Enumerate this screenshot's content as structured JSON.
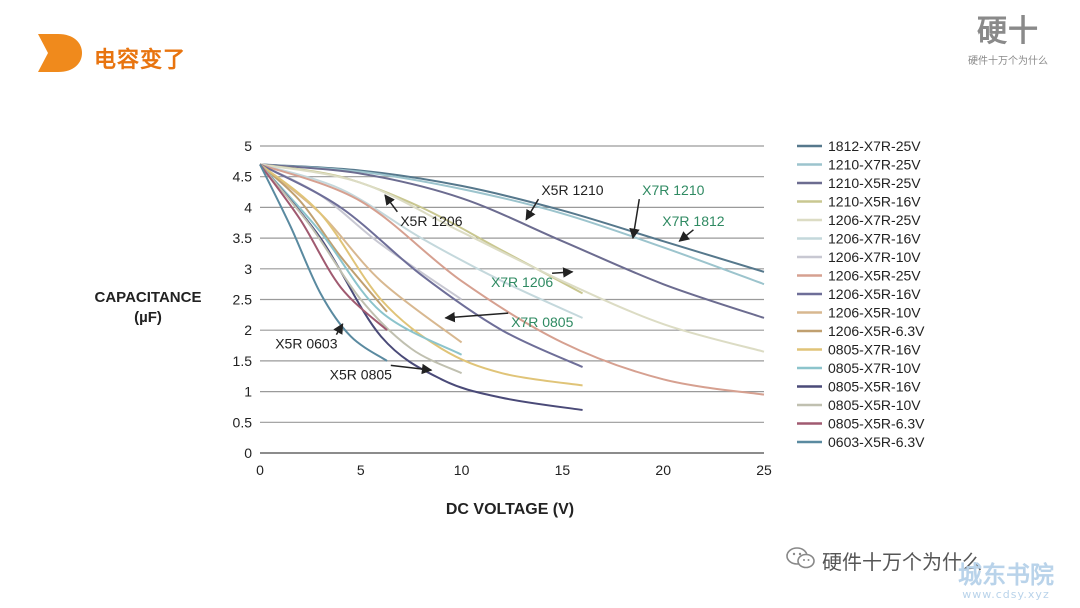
{
  "slide": {
    "title": "电容变了"
  },
  "brand": {
    "name": "硬十",
    "slogan": "硬件十万个为什么"
  },
  "footer": {
    "wechat_account": "硬件十万个为什么",
    "watermark_name": "城东书院",
    "watermark_url": "www.cdsy.xyz"
  },
  "colors": {
    "accent": "#e8740f"
  },
  "chart_data": {
    "type": "line",
    "xlabel": "DC VOLTAGE (V)",
    "ylabel": "CAPACITANCE\n(µF)",
    "xlim": [
      0,
      25
    ],
    "ylim": [
      0,
      5
    ],
    "x_ticks": [
      "0",
      "5",
      "10",
      "15",
      "20",
      "25"
    ],
    "y_ticks": [
      "0",
      "0.5",
      "1",
      "1.5",
      "2",
      "2.5",
      "3",
      "3.5",
      "4",
      "4.5",
      "5"
    ],
    "grid": "horizontal",
    "legend_position": "right",
    "series": [
      {
        "name": "1812-X7R-25V",
        "color": "#56788c",
        "points": [
          [
            0,
            4.7
          ],
          [
            5,
            4.6
          ],
          [
            10,
            4.35
          ],
          [
            15,
            3.95
          ],
          [
            20,
            3.45
          ],
          [
            25,
            2.95
          ]
        ]
      },
      {
        "name": "1210-X7R-25V",
        "color": "#9cc4cd",
        "points": [
          [
            0,
            4.7
          ],
          [
            5,
            4.58
          ],
          [
            10,
            4.3
          ],
          [
            15,
            3.9
          ],
          [
            20,
            3.35
          ],
          [
            25,
            2.75
          ]
        ]
      },
      {
        "name": "1210-X5R-25V",
        "color": "#6c6c90",
        "points": [
          [
            0,
            4.7
          ],
          [
            5,
            4.55
          ],
          [
            10,
            4.15
          ],
          [
            15,
            3.45
          ],
          [
            20,
            2.75
          ],
          [
            25,
            2.2
          ]
        ]
      },
      {
        "name": "1210-X5R-16V",
        "color": "#c9c790",
        "points": [
          [
            0,
            4.7
          ],
          [
            4,
            4.5
          ],
          [
            8,
            4.0
          ],
          [
            12,
            3.3
          ],
          [
            16,
            2.6
          ]
        ]
      },
      {
        "name": "1206-X7R-25V",
        "color": "#dcdcc4",
        "points": [
          [
            0,
            4.7
          ],
          [
            5,
            4.4
          ],
          [
            10,
            3.6
          ],
          [
            15,
            2.8
          ],
          [
            20,
            2.1
          ],
          [
            25,
            1.65
          ]
        ]
      },
      {
        "name": "1206-X7R-16V",
        "color": "#c4d8dc",
        "points": [
          [
            0,
            4.7
          ],
          [
            4,
            4.3
          ],
          [
            8,
            3.5
          ],
          [
            12,
            2.8
          ],
          [
            16,
            2.2
          ]
        ]
      },
      {
        "name": "1206-X7R-10V",
        "color": "#c8c8d2",
        "points": [
          [
            0,
            4.7
          ],
          [
            3,
            4.2
          ],
          [
            6,
            3.4
          ],
          [
            10,
            2.5
          ]
        ]
      },
      {
        "name": "1206-X5R-25V",
        "color": "#d6a090",
        "points": [
          [
            0,
            4.7
          ],
          [
            5,
            4.1
          ],
          [
            10,
            2.8
          ],
          [
            15,
            1.8
          ],
          [
            20,
            1.2
          ],
          [
            25,
            0.95
          ]
        ]
      },
      {
        "name": "1206-X5R-16V",
        "color": "#6e6e98",
        "points": [
          [
            0,
            4.7
          ],
          [
            4,
            4.0
          ],
          [
            8,
            2.9
          ],
          [
            12,
            2.0
          ],
          [
            16,
            1.4
          ]
        ]
      },
      {
        "name": "1206-X5R-10V",
        "color": "#d8b890",
        "points": [
          [
            0,
            4.7
          ],
          [
            3,
            3.9
          ],
          [
            6,
            2.8
          ],
          [
            10,
            1.8
          ]
        ]
      },
      {
        "name": "1206-X5R-6.3V",
        "color": "#c0a070",
        "points": [
          [
            0,
            4.7
          ],
          [
            2,
            4.1
          ],
          [
            4,
            3.2
          ],
          [
            6.3,
            2.3
          ]
        ]
      },
      {
        "name": "0805-X7R-16V",
        "color": "#e0c478",
        "points": [
          [
            0,
            4.7
          ],
          [
            3,
            3.9
          ],
          [
            6,
            2.5
          ],
          [
            9,
            1.7
          ],
          [
            12,
            1.3
          ],
          [
            16,
            1.1
          ]
        ]
      },
      {
        "name": "0805-X7R-10V",
        "color": "#8cc4cc",
        "points": [
          [
            0,
            4.7
          ],
          [
            3,
            3.6
          ],
          [
            6,
            2.3
          ],
          [
            10,
            1.6
          ]
        ]
      },
      {
        "name": "0805-X5R-16V",
        "color": "#4a4a78",
        "points": [
          [
            0,
            4.7
          ],
          [
            3,
            3.5
          ],
          [
            6,
            1.9
          ],
          [
            9,
            1.2
          ],
          [
            12,
            0.9
          ],
          [
            16,
            0.7
          ]
        ]
      },
      {
        "name": "0805-X5R-10V",
        "color": "#c0c0b0",
        "points": [
          [
            0,
            4.7
          ],
          [
            2.5,
            3.7
          ],
          [
            5,
            2.5
          ],
          [
            7.5,
            1.7
          ],
          [
            10,
            1.3
          ]
        ]
      },
      {
        "name": "0805-X5R-6.3V",
        "color": "#a05a70",
        "points": [
          [
            0,
            4.7
          ],
          [
            2,
            3.8
          ],
          [
            4,
            2.7
          ],
          [
            6.3,
            2.0
          ]
        ]
      },
      {
        "name": "0603-X5R-6.3V",
        "color": "#5a8aa0",
        "points": [
          [
            0,
            4.7
          ],
          [
            1.5,
            3.7
          ],
          [
            3,
            2.6
          ],
          [
            4.5,
            1.9
          ],
          [
            6.3,
            1.5
          ]
        ]
      }
    ],
    "annotations": [
      {
        "text": "X5R 1210",
        "color": "#222222",
        "at": [
          15.5,
          4.2
        ],
        "arrow_to": [
          13.2,
          3.8
        ]
      },
      {
        "text": "X7R 1210",
        "color": "#2f8a62",
        "at": [
          20.5,
          4.2
        ],
        "arrow_to": [
          18.5,
          3.5
        ]
      },
      {
        "text": "X7R 1812",
        "color": "#2f8a62",
        "at": [
          21.5,
          3.7
        ],
        "arrow_to": [
          20.8,
          3.45
        ]
      },
      {
        "text": "X5R 1206",
        "color": "#222222",
        "at": [
          8.5,
          3.7
        ],
        "arrow_to": [
          6.2,
          4.2
        ]
      },
      {
        "text": "X7R 1206",
        "color": "#2f8a62",
        "at": [
          13.0,
          2.7
        ],
        "arrow_to": [
          15.5,
          2.95
        ]
      },
      {
        "text": "X7R 0805",
        "color": "#2f8a62",
        "at": [
          14.0,
          2.05
        ],
        "arrow_to": [
          9.2,
          2.2
        ]
      },
      {
        "text": "X5R 0603",
        "color": "#222222",
        "at": [
          2.3,
          1.7
        ],
        "arrow_to": [
          4.1,
          2.1
        ]
      },
      {
        "text": "X5R 0805",
        "color": "#222222",
        "at": [
          5.0,
          1.2
        ],
        "arrow_to": [
          8.5,
          1.35
        ]
      }
    ]
  }
}
